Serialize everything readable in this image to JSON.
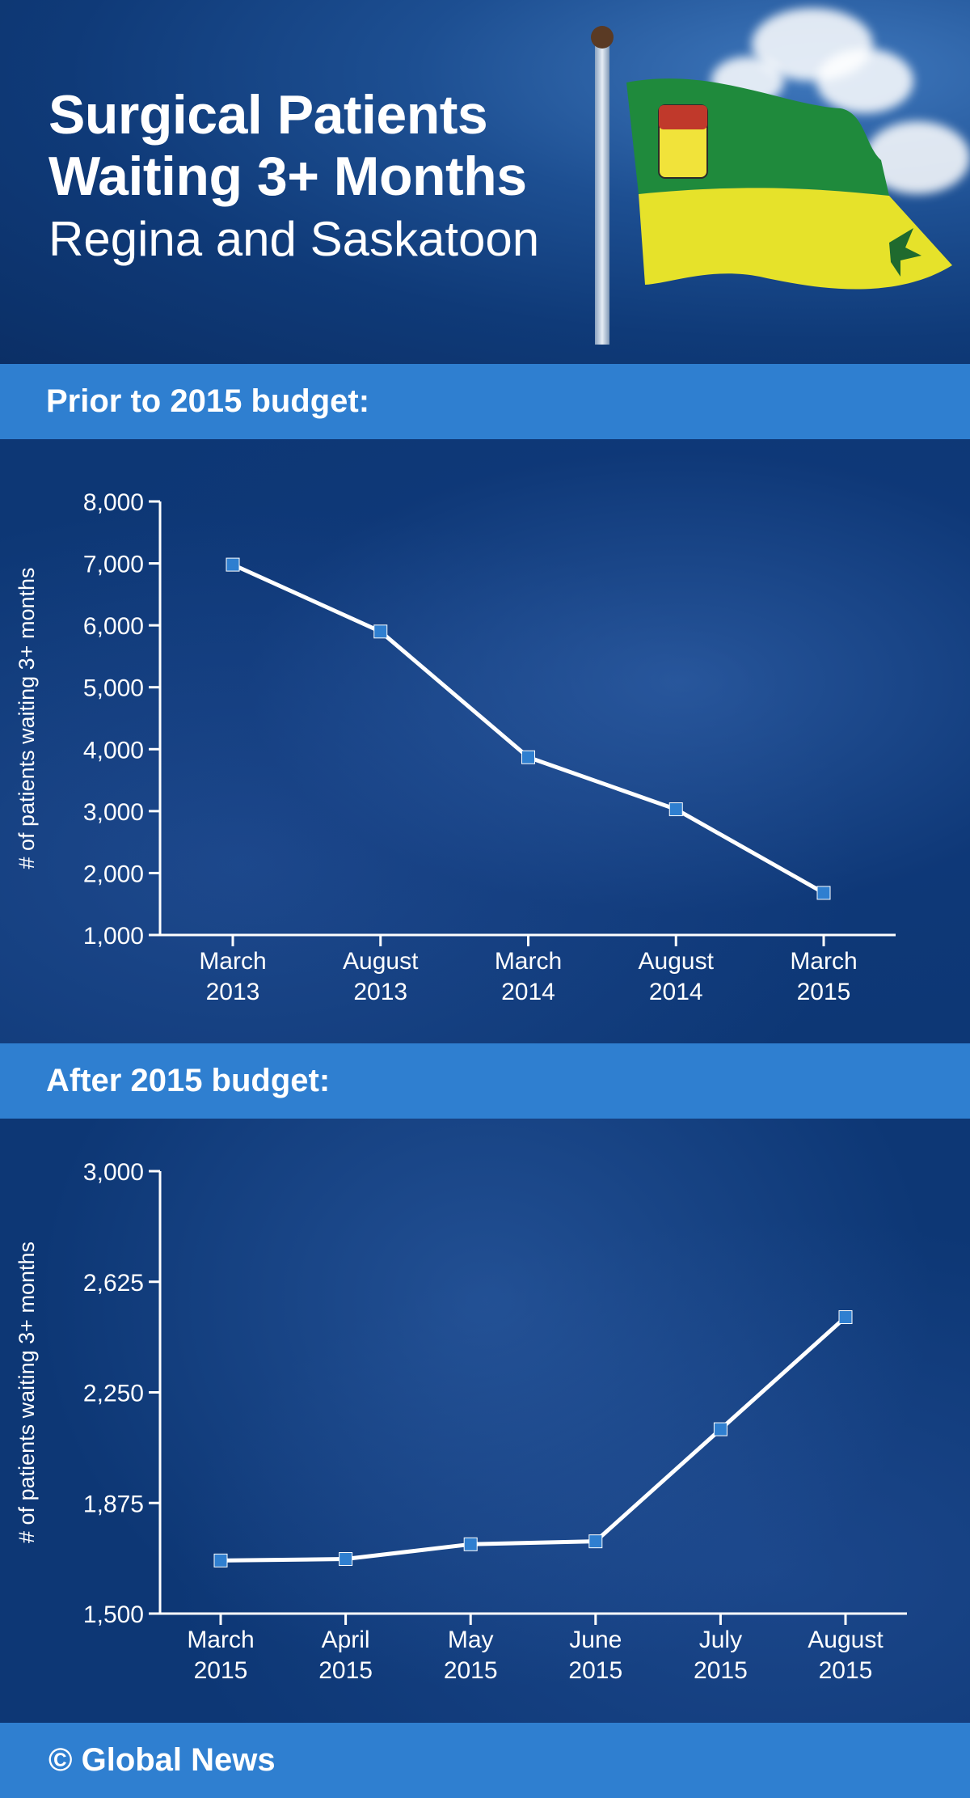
{
  "header": {
    "title_line1": "Surgical Patients",
    "title_line2": "Waiting 3+ Months",
    "subtitle": "Regina and Saskatoon"
  },
  "sections": {
    "before_label": "Prior to 2015 budget:",
    "after_label": "After 2015 budget:"
  },
  "footer": {
    "credit": "© Global News"
  },
  "colors": {
    "background": "#0d3775",
    "band": "#2f7fd0",
    "line": "#ffffff",
    "marker": "#2f7fd0",
    "flag_green": "#1f8a3c",
    "flag_yellow": "#e6e22a"
  },
  "chart_data": [
    {
      "type": "line",
      "title": "Prior to 2015 budget:",
      "xlabel": "",
      "ylabel": "# of patients waiting 3+ months",
      "categories": [
        [
          "March",
          "2013"
        ],
        [
          "August",
          "2013"
        ],
        [
          "March",
          "2014"
        ],
        [
          "August",
          "2014"
        ],
        [
          "March",
          "2015"
        ]
      ],
      "values": [
        6980,
        5900,
        3870,
        3030,
        1680
      ],
      "ylim": [
        1000,
        8000
      ],
      "yticks": [
        1000,
        2000,
        3000,
        4000,
        5000,
        6000,
        7000,
        8000
      ],
      "ytick_labels": [
        "1,000",
        "2,000",
        "3,000",
        "4,000",
        "5,000",
        "6,000",
        "7,000",
        "8,000"
      ],
      "grid": false,
      "legend": "none"
    },
    {
      "type": "line",
      "title": "After 2015 budget:",
      "xlabel": "",
      "ylabel": "# of patients waiting 3+ months",
      "categories": [
        [
          "March",
          "2015"
        ],
        [
          "April",
          "2015"
        ],
        [
          "May",
          "2015"
        ],
        [
          "June",
          "2015"
        ],
        [
          "July",
          "2015"
        ],
        [
          "August",
          "2015"
        ]
      ],
      "values": [
        1680,
        1685,
        1735,
        1745,
        2125,
        2505
      ],
      "ylim": [
        1500,
        3000
      ],
      "yticks": [
        1500,
        1875,
        2250,
        2625,
        3000
      ],
      "ytick_labels": [
        "1,500",
        "1,875",
        "2,250",
        "2,625",
        "3,000"
      ],
      "grid": false,
      "legend": "none"
    }
  ]
}
